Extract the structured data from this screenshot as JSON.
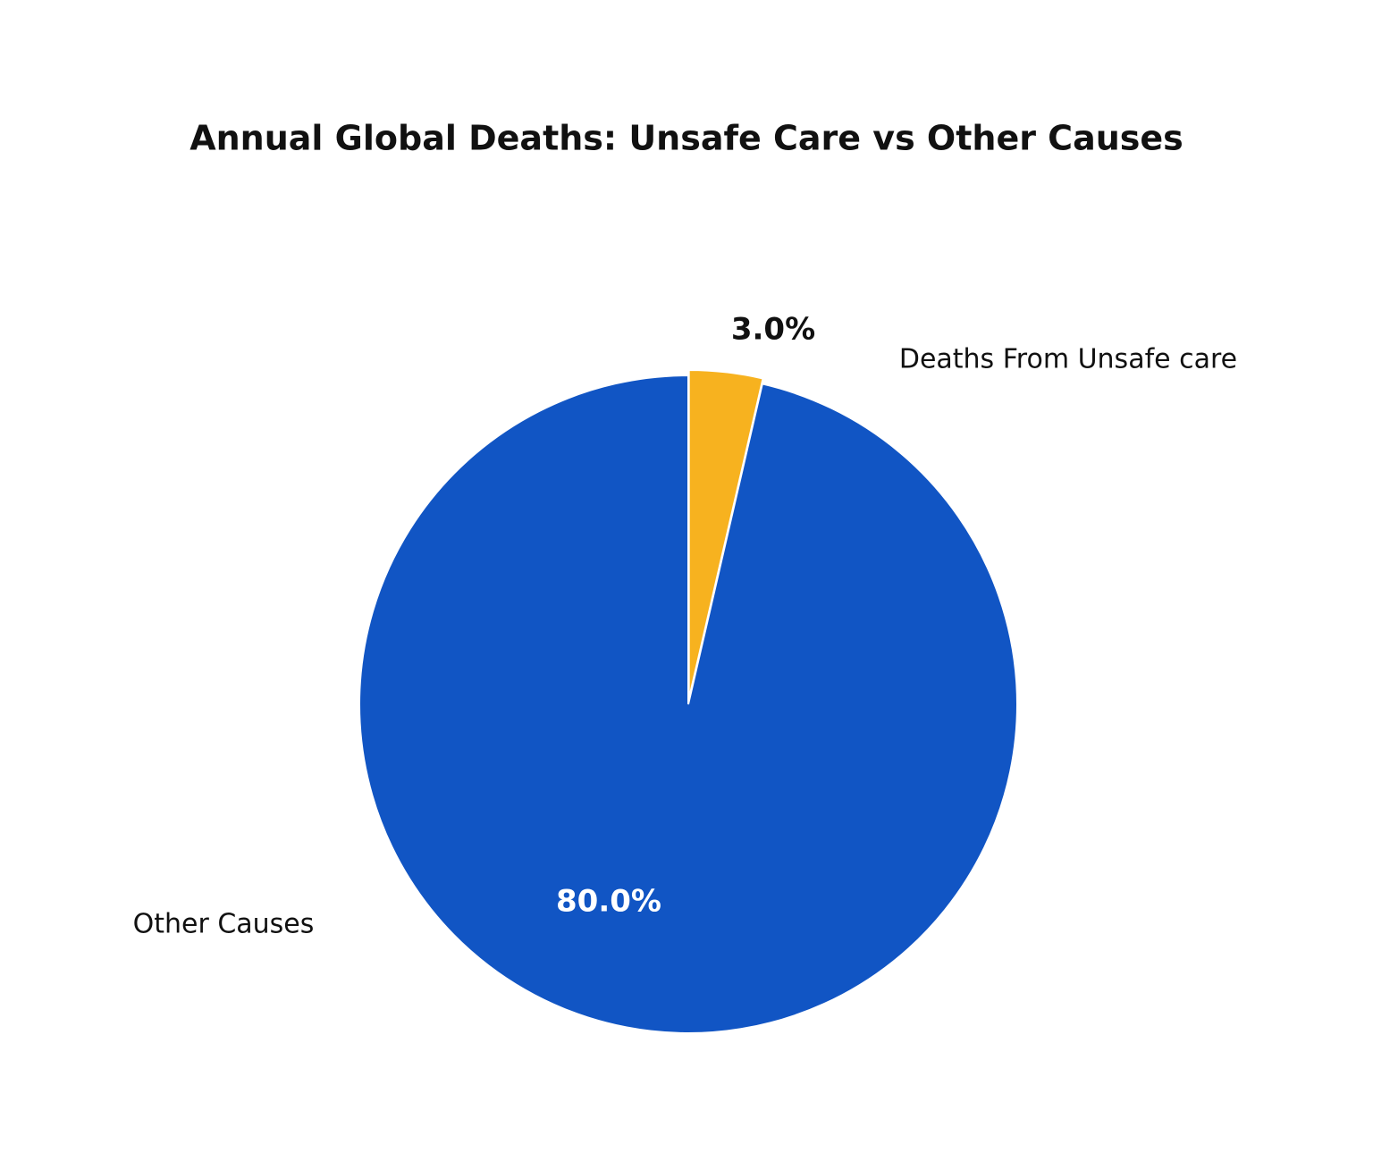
{
  "chart_data": {
    "type": "pie",
    "title": "Annual Global Deaths: Unsafe Care vs Other Causes",
    "categories": [
      "Deaths From Unsafe care",
      "Other Causes"
    ],
    "values": [
      3.0,
      80.0
    ],
    "value_labels": [
      "3.0%",
      "80.0%"
    ],
    "colors": [
      "#f7b21f",
      "#1155c4"
    ]
  }
}
